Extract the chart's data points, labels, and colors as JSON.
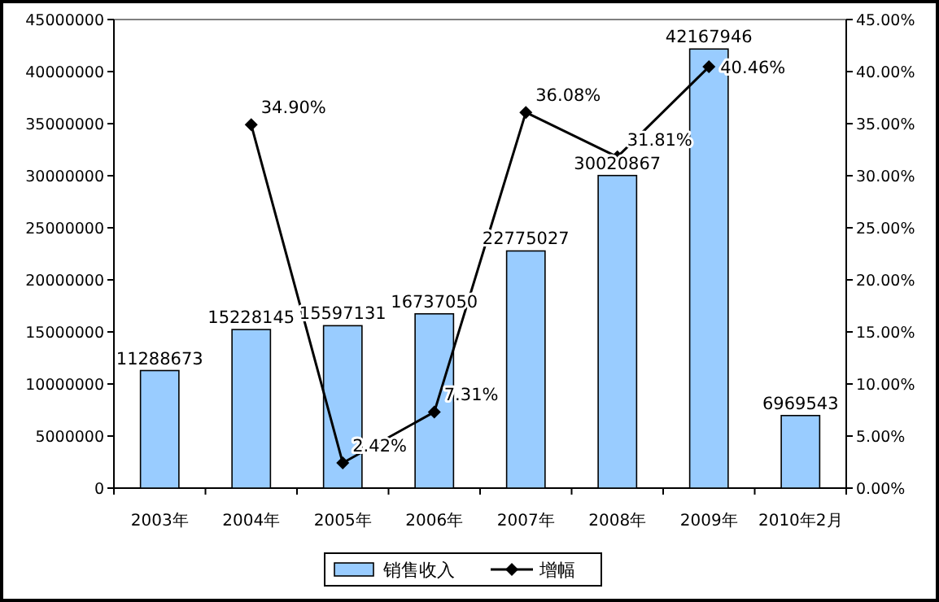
{
  "chart_data": {
    "type": "bar",
    "categories": [
      "2003年",
      "2004年",
      "2005年",
      "2006年",
      "2007年",
      "2008年",
      "2009年",
      "2010年2月"
    ],
    "series": [
      {
        "name": "销售收入",
        "type": "bar",
        "color": "#99ccff",
        "values": [
          11288673,
          15228145,
          15597131,
          16737050,
          22775027,
          30020867,
          42167946,
          6969543
        ],
        "value_labels": [
          "11288673",
          "15228145",
          "15597131",
          "16737050",
          "22775027",
          "30020867",
          "42167946",
          "6969543"
        ]
      },
      {
        "name": "增幅",
        "type": "line",
        "axis": "y2",
        "color": "#000000",
        "marker": "diamond",
        "values": [
          null,
          34.9,
          2.42,
          7.31,
          36.08,
          31.81,
          40.46,
          null
        ],
        "value_labels": [
          null,
          "34.90%",
          "2.42%",
          "7.31%",
          "36.08%",
          "31.81%",
          "40.46%",
          null
        ]
      }
    ],
    "ylim": [
      0,
      45000000
    ],
    "yticks": [
      0,
      5000000,
      10000000,
      15000000,
      20000000,
      25000000,
      30000000,
      35000000,
      40000000,
      45000000
    ],
    "y2lim": [
      0,
      45
    ],
    "y2ticks": [
      {
        "value": 0,
        "label": "0.00%"
      },
      {
        "value": 5,
        "label": "5.00%"
      },
      {
        "value": 10,
        "label": "10.00%"
      },
      {
        "value": 15,
        "label": "15.00%"
      },
      {
        "value": 20,
        "label": "20.00%"
      },
      {
        "value": 25,
        "label": "25.00%"
      },
      {
        "value": 30,
        "label": "30.00%"
      },
      {
        "value": 35,
        "label": "35.00%"
      },
      {
        "value": 40,
        "label": "40.00%"
      },
      {
        "value": 45,
        "label": "45.00%"
      }
    ],
    "legend": "bottom",
    "grid": false
  }
}
